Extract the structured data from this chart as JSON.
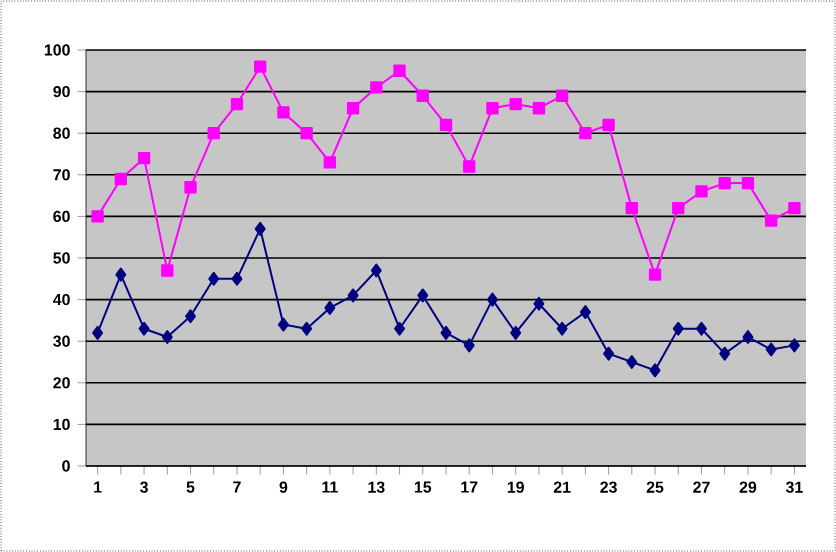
{
  "chart_data": {
    "type": "line",
    "categories": [
      "1",
      null,
      "3",
      null,
      "5",
      null,
      "7",
      null,
      "9",
      null,
      "11",
      null,
      "13",
      null,
      "15",
      null,
      "17",
      null,
      "19",
      null,
      "21",
      null,
      "23",
      null,
      "25",
      null,
      "27",
      null,
      "29",
      null,
      "31"
    ],
    "series": [
      {
        "color": "#ff00ff",
        "marker": "square",
        "values": [
          60,
          69,
          74,
          47,
          67,
          80,
          87,
          96,
          85,
          80,
          73,
          86,
          91,
          95,
          89,
          82,
          72,
          86,
          87,
          86,
          89,
          80,
          82,
          62,
          46,
          62,
          66,
          68,
          68,
          59,
          62
        ]
      },
      {
        "color": "#000080",
        "marker": "diamond",
        "values": [
          32,
          46,
          33,
          31,
          36,
          45,
          45,
          57,
          34,
          33,
          38,
          41,
          47,
          33,
          41,
          32,
          29,
          40,
          32,
          39,
          33,
          37,
          27,
          25,
          23,
          33,
          33,
          27,
          31,
          28,
          29
        ]
      }
    ],
    "ylim": [
      0,
      100
    ],
    "yticks": [
      0,
      10,
      20,
      30,
      40,
      50,
      60,
      70,
      80,
      90,
      100
    ],
    "grid": "y"
  }
}
